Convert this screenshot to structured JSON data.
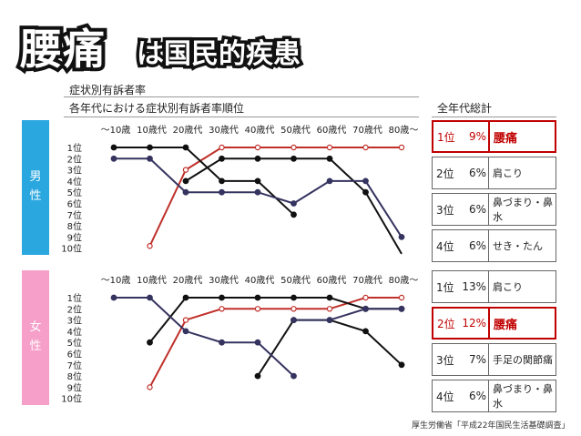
{
  "title": {
    "main": "腰痛",
    "sub": "は国民的疾患"
  },
  "subtitle1": "症状別有訴者率",
  "subtitle2": "各年代における症状別有訴者率順位",
  "summary_title": "全年代総計",
  "male_label": [
    "男",
    "性"
  ],
  "female_label": [
    "女",
    "性"
  ],
  "source": "厚生労働省「平成22年国民生活基礎調査」",
  "male_ranks": [
    {
      "rank": "1位",
      "pct": "9%",
      "name": "腰痛",
      "highlight": true
    },
    {
      "rank": "2位",
      "pct": "6%",
      "name": "肩こり",
      "highlight": false
    },
    {
      "rank": "3位",
      "pct": "6%",
      "name": "鼻づまり・鼻水",
      "highlight": false
    },
    {
      "rank": "4位",
      "pct": "6%",
      "name": "せき・たん",
      "highlight": false
    }
  ],
  "female_ranks": [
    {
      "rank": "1位",
      "pct": "13%",
      "name": "肩こり",
      "highlight": false
    },
    {
      "rank": "2位",
      "pct": "12%",
      "name": "腰痛",
      "highlight": true
    },
    {
      "rank": "3位",
      "pct": "7%",
      "name": "手足の関節痛",
      "highlight": false
    },
    {
      "rank": "4位",
      "pct": "6%",
      "name": "鼻づまり・鼻水",
      "highlight": false
    }
  ],
  "colors": {
    "red": "#c0302a",
    "navy": "#35335f",
    "black": "#111111",
    "accent_red": "#c00000"
  },
  "chart_data": [
    {
      "type": "line",
      "panel": "male",
      "categories": [
        "〜10歳",
        "10歳代",
        "20歳代",
        "30歳代",
        "40歳代",
        "50歳代",
        "60歳代",
        "70歳代",
        "80歳〜"
      ],
      "y_tick_labels": [
        "1位",
        "2位",
        "3位",
        "4位",
        "5位",
        "6位",
        "7位",
        "8位",
        "9位",
        "10位"
      ],
      "ylim": [
        1,
        10
      ],
      "y_inverted": true,
      "series": [
        {
          "color": "#c0302a",
          "values": [
            null,
            9.8,
            3,
            1,
            1,
            1,
            1,
            1,
            1
          ]
        },
        {
          "color": "#111111",
          "values": [
            1,
            1,
            1,
            4,
            4,
            7,
            null,
            null,
            null
          ]
        },
        {
          "color": "#111111",
          "values": [
            null,
            null,
            4,
            2,
            2,
            2,
            2,
            5,
            10.5
          ]
        },
        {
          "color": "#35335f",
          "values": [
            2,
            2,
            5,
            5,
            5,
            6,
            4,
            4,
            9
          ]
        }
      ]
    },
    {
      "type": "line",
      "panel": "female",
      "categories": [
        "〜10歳",
        "10歳代",
        "20歳代",
        "30歳代",
        "40歳代",
        "50歳代",
        "60歳代",
        "70歳代",
        "80歳〜"
      ],
      "y_tick_labels": [
        "1位",
        "2位",
        "3位",
        "4位",
        "5位",
        "6位",
        "7位",
        "8位",
        "9位",
        "10位"
      ],
      "ylim": [
        1,
        10
      ],
      "y_inverted": true,
      "series": [
        {
          "color": "#c0302a",
          "values": [
            null,
            9,
            3,
            2,
            2,
            2,
            2,
            1,
            1
          ]
        },
        {
          "color": "#111111",
          "values": [
            null,
            5,
            1,
            1,
            1,
            1,
            1,
            2,
            2
          ]
        },
        {
          "color": "#111111",
          "values": [
            null,
            null,
            null,
            null,
            8,
            3,
            3,
            4,
            7
          ]
        },
        {
          "color": "#35335f",
          "values": [
            1,
            1,
            4,
            5,
            5,
            8,
            null,
            null,
            null
          ]
        },
        {
          "color": "#35335f",
          "values": [
            null,
            null,
            null,
            null,
            null,
            3,
            3,
            2,
            2
          ]
        }
      ]
    }
  ]
}
